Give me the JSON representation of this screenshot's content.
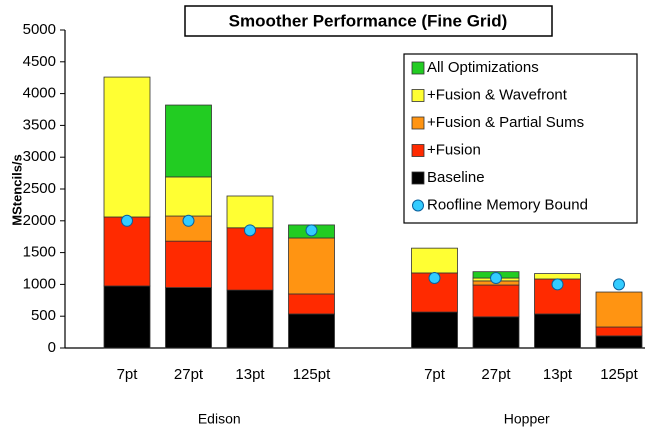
{
  "chart_data": {
    "type": "stacked-bar",
    "title": "Smoother Performance (Fine Grid)",
    "y_label": "MStencils/s",
    "categories": [
      "7pt",
      "27pt",
      "13pt",
      "125pt",
      null,
      "7pt",
      "27pt",
      "13pt",
      "125pt"
    ],
    "groups": [
      "Edison",
      "Hopper"
    ],
    "ylim": [
      0,
      5000
    ],
    "yticks": [
      0,
      500,
      1000,
      1500,
      2000,
      2500,
      3000,
      3500,
      4000,
      4500,
      5000
    ],
    "grid": false,
    "legend": "top-right",
    "series": [
      {
        "name": "Baseline",
        "color": "#000000",
        "values": [
          975,
          950,
          910,
          535,
          null,
          565,
          490,
          535,
          190
        ]
      },
      {
        "name": "+Fusion",
        "color": "#ff2a00",
        "values": [
          1085,
          730,
          980,
          315,
          null,
          615,
          500,
          550,
          140
        ]
      },
      {
        "name": "+Fusion & Partial Sums",
        "color": "#ff9412",
        "values": [
          0,
          395,
          0,
          880,
          null,
          0,
          65,
          0,
          550
        ]
      },
      {
        "name": "+Fusion & Wavefront",
        "color": "#ffff33",
        "values": [
          2200,
          615,
          500,
          0,
          null,
          390,
          45,
          85,
          0
        ]
      },
      {
        "name": "All Optimizations",
        "color": "#22cc22",
        "values": [
          0,
          1130,
          0,
          205,
          null,
          0,
          100,
          0,
          0
        ]
      }
    ],
    "points": {
      "name": "Roofline Memory Bound",
      "color": "#33ccff",
      "values": [
        2000,
        2000,
        1850,
        1850,
        null,
        1100,
        1100,
        1000,
        1000
      ]
    }
  }
}
